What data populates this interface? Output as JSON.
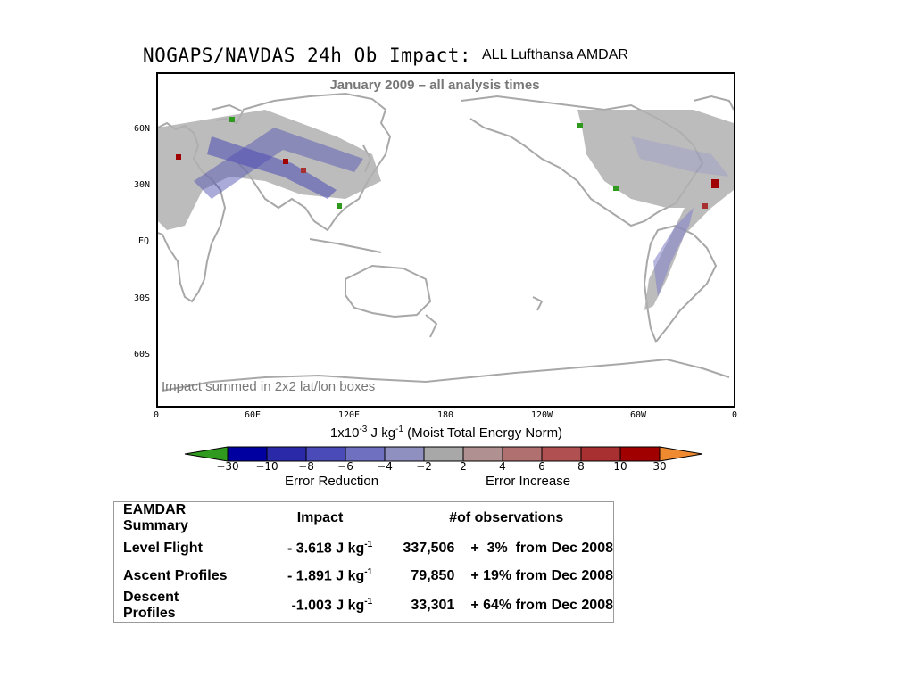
{
  "title": "NOGAPS/NAVDAS 24h Ob Impact:",
  "subtitle": "ALL Lufthansa AMDAR",
  "map": {
    "period": "January 2009 – all analysis times",
    "note": "Impact summed in 2x2 lat/lon boxes",
    "lat_labels": [
      "60N",
      "30N",
      "EQ",
      "30S",
      "60S"
    ],
    "lon_labels": [
      "0",
      "60E",
      "120E",
      "180",
      "120W",
      "60W",
      "0"
    ]
  },
  "units": {
    "base": "1x10",
    "exp1": "-3",
    "mid": " J kg",
    "exp2": "-1",
    "tail": " (Moist Total Energy Norm)"
  },
  "colorbar": {
    "ticks": [
      "−30",
      "−10",
      "−8",
      "−6",
      "−4",
      "−2",
      "2",
      "4",
      "6",
      "8",
      "10",
      "30"
    ],
    "colors": [
      "#2f9a1d",
      "#0000a0",
      "#2a2aa8",
      "#4a4ab8",
      "#7070c0",
      "#9090c0",
      "#a8a8a8",
      "#b09090",
      "#b07070",
      "#b05050",
      "#a83030",
      "#a00000",
      "#f08a30"
    ],
    "label_left": "Error Reduction",
    "label_right": "Error Increase"
  },
  "summary": {
    "headers": [
      "EAMDAR Summary",
      "Impact",
      "#of observations"
    ],
    "rows": [
      {
        "name": "Level Flight",
        "impact": "- 3.618 J kg",
        "exp": "-1",
        "obs": "337,506",
        "change": "+  3%  from Dec 2008"
      },
      {
        "name": "Ascent Profiles",
        "impact": "- 1.891 J kg",
        "exp": "-1",
        "obs": "79,850",
        "change": "+ 19% from Dec 2008"
      },
      {
        "name": "Descent Profiles",
        "impact": "-1.003 J kg",
        "exp": "-1",
        "obs": "33,301",
        "change": "+ 64% from Dec 2008"
      }
    ]
  }
}
